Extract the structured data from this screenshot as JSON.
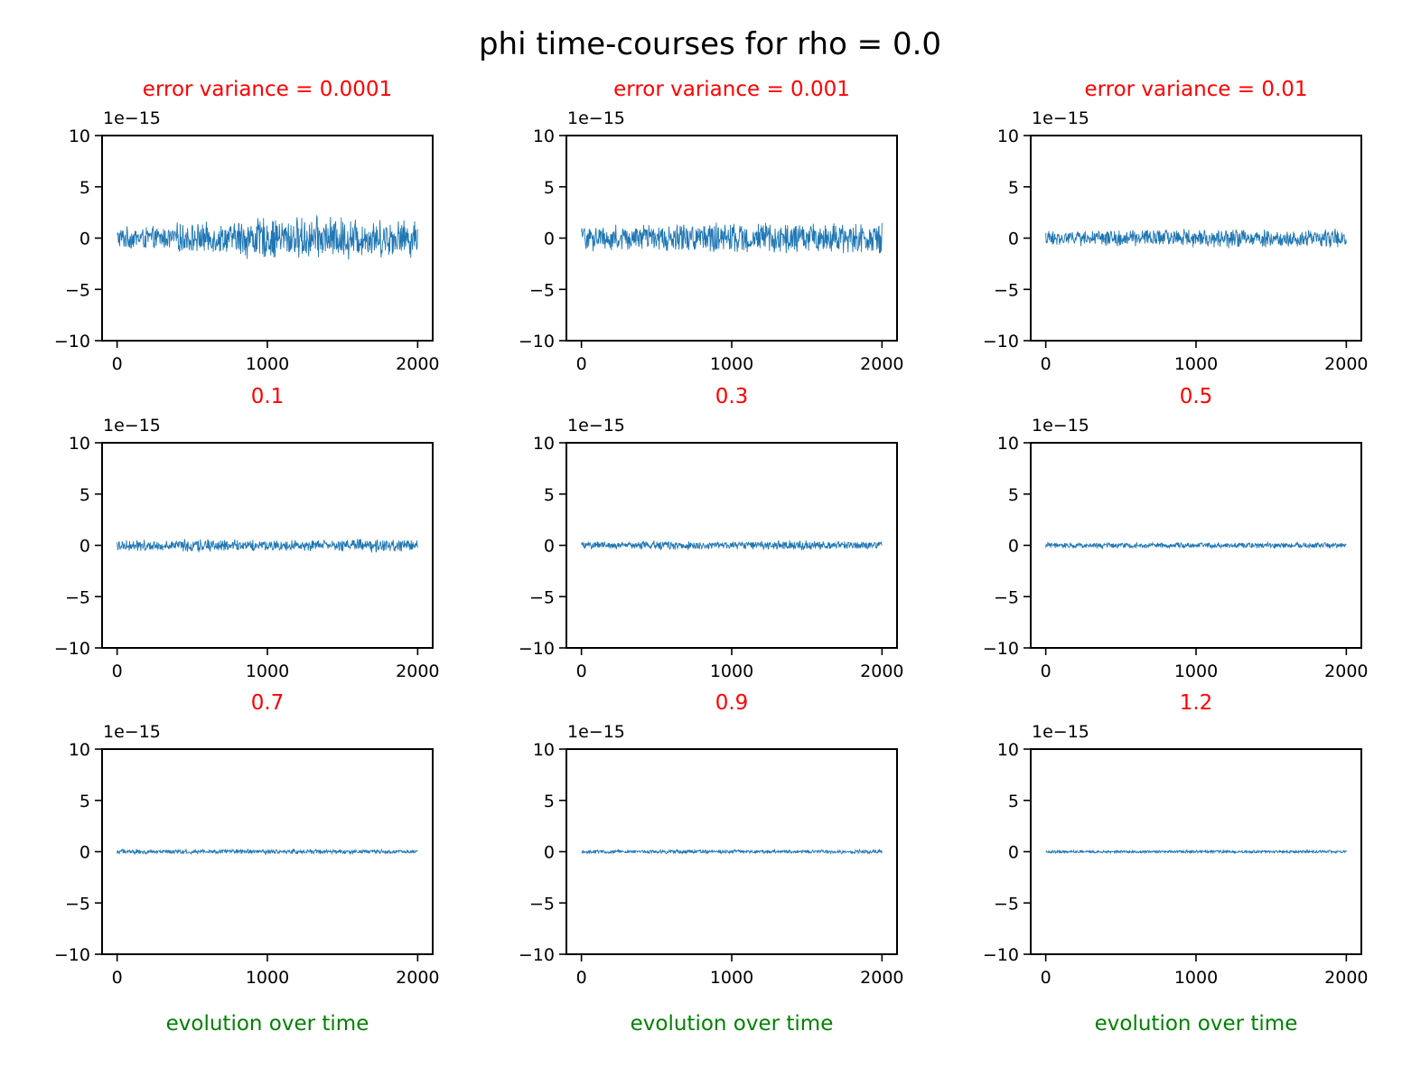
{
  "figure": {
    "suptitle": "phi time-courses for rho = 0.0",
    "colors": {
      "line": "#1f77b4",
      "title": "#ff0000",
      "xlabel": "#008000",
      "axes": "#000000"
    }
  },
  "chart_data": [
    {
      "type": "line",
      "title": "error variance = 0.0001",
      "xlabel": "",
      "y_offset_label": "1e−15",
      "xlim": [
        -100,
        2100
      ],
      "ylim": [
        -10,
        10
      ],
      "x_ticks": [
        "0",
        "1000",
        "2000"
      ],
      "y_ticks": [
        "10",
        "5",
        "0",
        "−5",
        "−10"
      ],
      "x_range": [
        0,
        2000
      ],
      "amplitude": [
        1.2,
        1.6,
        2.2,
        2.3,
        2.0
      ],
      "grid": false
    },
    {
      "type": "line",
      "title": "error variance = 0.001",
      "xlabel": "",
      "y_offset_label": "1e−15",
      "xlim": [
        -100,
        2100
      ],
      "ylim": [
        -10,
        10
      ],
      "x_ticks": [
        "0",
        "1000",
        "2000"
      ],
      "y_ticks": [
        "10",
        "5",
        "0",
        "−5",
        "−10"
      ],
      "x_range": [
        0,
        2000
      ],
      "amplitude": [
        1.4,
        1.5,
        1.6,
        1.6,
        1.7
      ],
      "grid": false
    },
    {
      "type": "line",
      "title": "error variance = 0.01",
      "xlabel": "",
      "y_offset_label": "1e−15",
      "xlim": [
        -100,
        2100
      ],
      "ylim": [
        -10,
        10
      ],
      "x_ticks": [
        "0",
        "1000",
        "2000"
      ],
      "y_ticks": [
        "10",
        "5",
        "0",
        "−5",
        "−10"
      ],
      "x_range": [
        0,
        2000
      ],
      "amplitude": [
        0.8,
        0.9,
        1.0,
        1.0,
        1.0
      ],
      "grid": false
    },
    {
      "type": "line",
      "title": "0.1",
      "xlabel": "",
      "y_offset_label": "1e−15",
      "xlim": [
        -100,
        2100
      ],
      "ylim": [
        -10,
        10
      ],
      "x_ticks": [
        "0",
        "1000",
        "2000"
      ],
      "y_ticks": [
        "10",
        "5",
        "0",
        "−5",
        "−10"
      ],
      "x_range": [
        0,
        2000
      ],
      "amplitude": [
        0.6,
        0.7,
        0.6,
        0.6,
        0.7
      ],
      "grid": false
    },
    {
      "type": "line",
      "title": "0.3",
      "xlabel": "",
      "y_offset_label": "1e−15",
      "xlim": [
        -100,
        2100
      ],
      "ylim": [
        -10,
        10
      ],
      "x_ticks": [
        "0",
        "1000",
        "2000"
      ],
      "y_ticks": [
        "10",
        "5",
        "0",
        "−5",
        "−10"
      ],
      "x_range": [
        0,
        2000
      ],
      "amplitude": [
        0.4,
        0.5,
        0.4,
        0.5,
        0.4
      ],
      "grid": false
    },
    {
      "type": "line",
      "title": "0.5",
      "xlabel": "",
      "y_offset_label": "1e−15",
      "xlim": [
        -100,
        2100
      ],
      "ylim": [
        -10,
        10
      ],
      "x_ticks": [
        "0",
        "1000",
        "2000"
      ],
      "y_ticks": [
        "10",
        "5",
        "0",
        "−5",
        "−10"
      ],
      "x_range": [
        0,
        2000
      ],
      "amplitude": [
        0.3,
        0.3,
        0.3,
        0.3,
        0.3
      ],
      "grid": false
    },
    {
      "type": "line",
      "title": "0.7",
      "xlabel": "evolution over time",
      "y_offset_label": "1e−15",
      "xlim": [
        -100,
        2100
      ],
      "ylim": [
        -10,
        10
      ],
      "x_ticks": [
        "0",
        "1000",
        "2000"
      ],
      "y_ticks": [
        "10",
        "5",
        "0",
        "−5",
        "−10"
      ],
      "x_range": [
        0,
        2000
      ],
      "amplitude": [
        0.25,
        0.25,
        0.25,
        0.25,
        0.2
      ],
      "grid": false
    },
    {
      "type": "line",
      "title": "0.9",
      "xlabel": "evolution over time",
      "y_offset_label": "1e−15",
      "xlim": [
        -100,
        2100
      ],
      "ylim": [
        -10,
        10
      ],
      "x_ticks": [
        "0",
        "1000",
        "2000"
      ],
      "y_ticks": [
        "10",
        "5",
        "0",
        "−5",
        "−10"
      ],
      "x_range": [
        0,
        2000
      ],
      "amplitude": [
        0.2,
        0.2,
        0.2,
        0.2,
        0.2
      ],
      "grid": false
    },
    {
      "type": "line",
      "title": "1.2",
      "xlabel": "evolution over time",
      "y_offset_label": "1e−15",
      "xlim": [
        -100,
        2100
      ],
      "ylim": [
        -10,
        10
      ],
      "x_ticks": [
        "0",
        "1000",
        "2000"
      ],
      "y_ticks": [
        "10",
        "5",
        "0",
        "−5",
        "−10"
      ],
      "x_range": [
        0,
        2000
      ],
      "amplitude": [
        0.15,
        0.15,
        0.15,
        0.15,
        0.15
      ],
      "grid": false
    }
  ]
}
